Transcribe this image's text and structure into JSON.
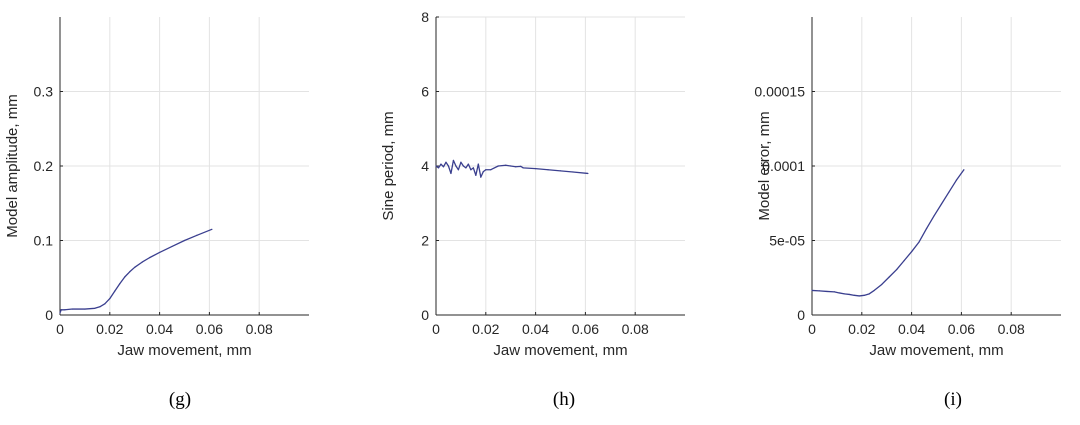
{
  "chart_data": [
    {
      "type": "line",
      "caption": "(g)",
      "xlabel": "Jaw movement, mm",
      "ylabel": "Model amplitude, mm",
      "xlim": [
        0,
        0.1
      ],
      "ylim": [
        0,
        0.4
      ],
      "xticks": [
        0,
        0.02,
        0.04,
        0.06,
        0.08
      ],
      "xtick_labels": [
        "0",
        "0.02",
        "0.04",
        "0.06",
        "0.08"
      ],
      "yticks": [
        0,
        0.1,
        0.2,
        0.3
      ],
      "ytick_labels": [
        "0",
        "0.1",
        "0.2",
        "0.3"
      ],
      "grid": true,
      "color": "#3a3f8f",
      "series": [
        {
          "x": [
            0,
            0.0005,
            0.002,
            0.005,
            0.01,
            0.014,
            0.016,
            0.018,
            0.02,
            0.022,
            0.024,
            0.026,
            0.028,
            0.03,
            0.033,
            0.036,
            0.04,
            0.045,
            0.05,
            0.055,
            0.061
          ],
          "y": [
            0.003,
            0.007,
            0.007,
            0.008,
            0.008,
            0.009,
            0.011,
            0.015,
            0.022,
            0.032,
            0.042,
            0.051,
            0.058,
            0.064,
            0.071,
            0.077,
            0.084,
            0.092,
            0.1,
            0.107,
            0.115
          ]
        }
      ]
    },
    {
      "type": "line",
      "caption": "(h)",
      "xlabel": "Jaw movement, mm",
      "ylabel": "Sine period, mm",
      "xlim": [
        0,
        0.1
      ],
      "ylim": [
        0,
        8
      ],
      "xticks": [
        0,
        0.02,
        0.04,
        0.06,
        0.08
      ],
      "xtick_labels": [
        "0",
        "0.02",
        "0.04",
        "0.06",
        "0.08"
      ],
      "yticks": [
        0,
        2,
        4,
        6,
        8
      ],
      "ytick_labels": [
        "0",
        "2",
        "4",
        "6",
        "8"
      ],
      "grid": true,
      "color": "#3a3f8f",
      "series": [
        {
          "x": [
            0,
            0.001,
            0.002,
            0.003,
            0.004,
            0.005,
            0.006,
            0.007,
            0.008,
            0.009,
            0.01,
            0.011,
            0.012,
            0.013,
            0.014,
            0.015,
            0.016,
            0.017,
            0.018,
            0.019,
            0.02,
            0.022,
            0.025,
            0.028,
            0.03,
            0.032,
            0.034,
            0.035,
            0.04,
            0.045,
            0.05,
            0.055,
            0.061
          ],
          "y": [
            4.0,
            3.95,
            4.05,
            3.98,
            4.1,
            4.0,
            3.8,
            4.15,
            4.0,
            3.9,
            4.1,
            4.0,
            3.95,
            4.05,
            3.9,
            3.95,
            3.75,
            4.05,
            3.7,
            3.85,
            3.9,
            3.9,
            4.0,
            4.02,
            4.0,
            3.98,
            3.99,
            3.95,
            3.93,
            3.9,
            3.87,
            3.84,
            3.8
          ]
        }
      ]
    },
    {
      "type": "line",
      "caption": "(i)",
      "xlabel": "Jaw movement, mm",
      "ylabel": "Model error, mm",
      "xlim": [
        0,
        0.1
      ],
      "ylim": [
        0,
        0.0002
      ],
      "xticks": [
        0,
        0.02,
        0.04,
        0.06,
        0.08
      ],
      "xtick_labels": [
        "0",
        "0.02",
        "0.04",
        "0.06",
        "0.08"
      ],
      "yticks": [
        0,
        5e-05,
        0.0001,
        0.00015
      ],
      "ytick_labels": [
        "0",
        "5e-05",
        "0.0001",
        "0.00015"
      ],
      "grid": true,
      "color": "#3a3f8f",
      "series": [
        {
          "x": [
            0,
            0.003,
            0.006,
            0.009,
            0.011,
            0.013,
            0.015,
            0.017,
            0.019,
            0.021,
            0.023,
            0.025,
            0.028,
            0.031,
            0.034,
            0.037,
            0.04,
            0.043,
            0.046,
            0.049,
            0.052,
            0.055,
            0.058,
            0.061
          ],
          "y": [
            1.65e-05,
            1.62e-05,
            1.58e-05,
            1.55e-05,
            1.48e-05,
            1.42e-05,
            1.38e-05,
            1.32e-05,
            1.28e-05,
            1.32e-05,
            1.42e-05,
            1.65e-05,
            2.05e-05,
            2.55e-05,
            3.05e-05,
            3.65e-05,
            4.25e-05,
            4.9e-05,
            5.8e-05,
            6.65e-05,
            7.45e-05,
            8.25e-05,
            9.05e-05,
            9.75e-05
          ]
        }
      ]
    }
  ]
}
